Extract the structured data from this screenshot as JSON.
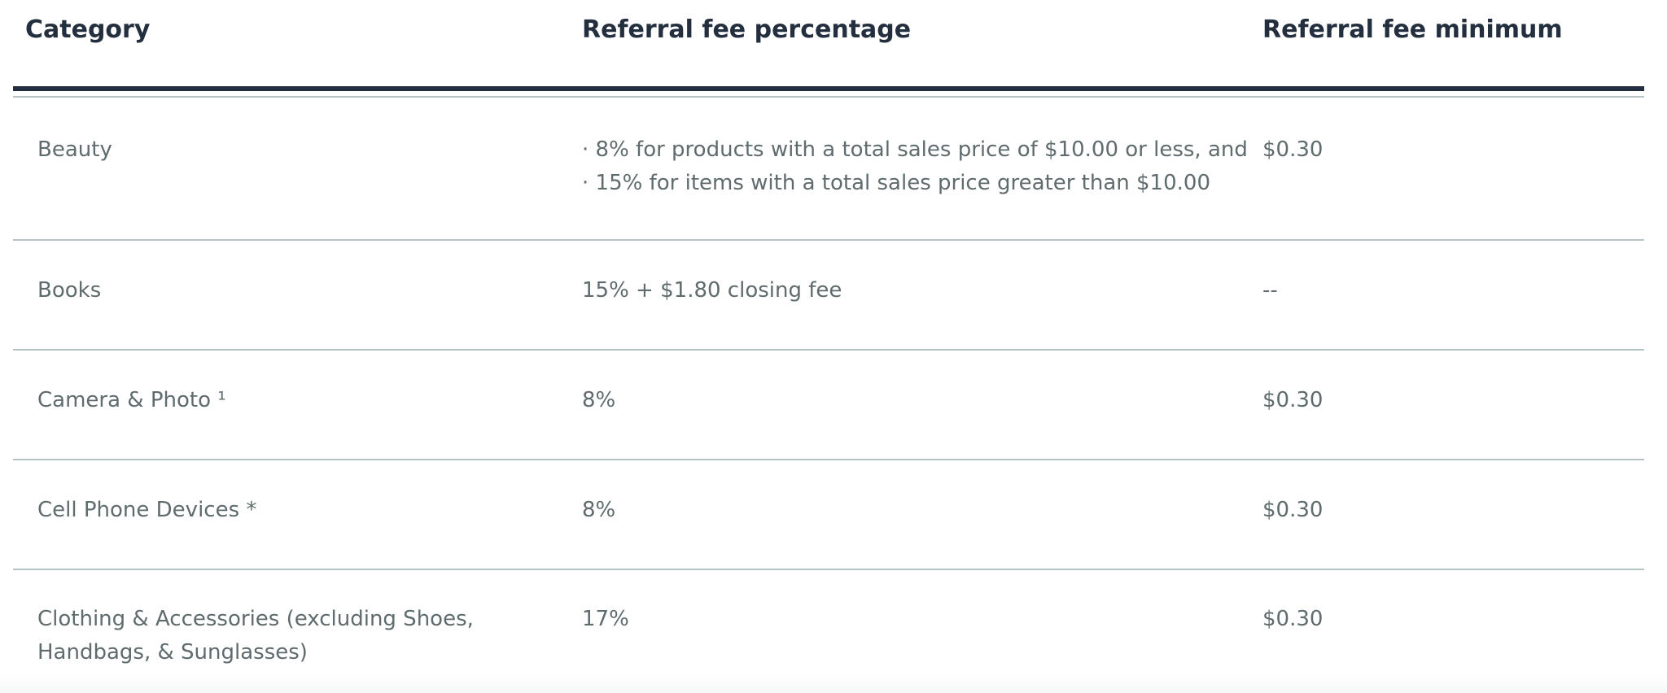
{
  "table": {
    "headers": {
      "category": "Category",
      "percentage": "Referral fee percentage",
      "minimum": "Referral fee minimum"
    },
    "rows": [
      {
        "category": "Beauty",
        "percentage_lines": [
          "· 8% for products with a total sales price of $10.00 or less, and",
          "· 15% for items with a total sales price greater than $10.00"
        ],
        "minimum": "$0.30"
      },
      {
        "category": "Books",
        "percentage": "15% + $1.80 closing fee",
        "minimum": "--"
      },
      {
        "category": "Camera & Photo ¹",
        "percentage": "8%",
        "minimum": "$0.30"
      },
      {
        "category": "Cell Phone Devices *",
        "percentage": "8%",
        "minimum": "$0.30"
      },
      {
        "category_lines": [
          "Clothing & Accessories (excluding Shoes,",
          "Handbags, & Sunglasses)"
        ],
        "percentage": "17%",
        "minimum": "$0.30"
      }
    ]
  },
  "colors": {
    "header_text": "#232f3e",
    "header_rule": "#232f3e",
    "body_text": "#5f6b6d",
    "row_rule": "#b7c4c4"
  }
}
